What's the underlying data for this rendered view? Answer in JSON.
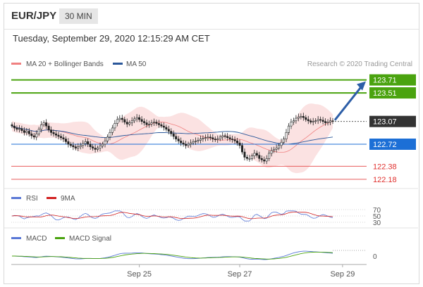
{
  "header": {
    "symbol": "EUR/JPY",
    "timeframe": "30 MIN"
  },
  "datetime": "Tuesday, September 29, 2020 12:15:29 AM CET",
  "credit": "Research © 2020 Trading Central",
  "colors": {
    "bullish": "#4aa30f",
    "bearish": "#e0312f",
    "current": "#333333",
    "pivot": "#1c6fd6",
    "ma50": "#2a579a",
    "bb": "#f2a0a0",
    "arrow": "#2d5ea7",
    "rsi": "#5a78d6",
    "rsi_ma": "#d11f1f",
    "macd": "#5a78d6",
    "macd_signal": "#4aa30f"
  },
  "chart_data": [
    {
      "type": "candlestick",
      "title": "EUR/JPY",
      "legend": [
        "MA 20 + Bollinger Bands",
        "MA 50"
      ],
      "ylim": [
        122.1,
        124.0
      ],
      "levels": [
        {
          "value": 123.71,
          "label": "123.71",
          "kind": "resistance"
        },
        {
          "value": 123.51,
          "label": "123.51",
          "kind": "resistance"
        },
        {
          "value": 123.07,
          "label": "123.07",
          "kind": "current"
        },
        {
          "value": 122.72,
          "label": "122.72",
          "kind": "pivot"
        },
        {
          "value": 122.38,
          "label": "122.38",
          "kind": "support"
        },
        {
          "value": 122.18,
          "label": "122.18",
          "kind": "support"
        }
      ],
      "xticks": [
        {
          "index": 52,
          "label": "Sep 25"
        },
        {
          "index": 93,
          "label": "Sep 27"
        },
        {
          "index": 135,
          "label": "Sep 29"
        }
      ],
      "closes": [
        123.0,
        122.97,
        122.95,
        122.96,
        122.93,
        122.9,
        122.92,
        122.88,
        122.85,
        122.83,
        122.88,
        122.95,
        123.02,
        123.05,
        123.0,
        122.94,
        122.9,
        122.88,
        122.86,
        122.84,
        122.82,
        122.8,
        122.76,
        122.72,
        122.7,
        122.68,
        122.66,
        122.68,
        122.7,
        122.73,
        122.76,
        122.72,
        122.68,
        122.66,
        122.64,
        122.66,
        122.69,
        122.72,
        122.77,
        122.83,
        122.9,
        122.97,
        123.04,
        123.1,
        123.12,
        123.1,
        123.06,
        123.03,
        123.05,
        123.08,
        123.11,
        123.13,
        123.1,
        123.07,
        123.05,
        123.02,
        123.03,
        123.05,
        123.06,
        123.04,
        123.02,
        123.0,
        122.98,
        122.95,
        122.92,
        122.88,
        122.84,
        122.8,
        122.77,
        122.74,
        122.72,
        122.7,
        122.72,
        122.74,
        122.76,
        122.77,
        122.78,
        122.8,
        122.81,
        122.82,
        122.83,
        122.82,
        122.8,
        122.79,
        122.8,
        122.83,
        122.85,
        122.84,
        122.82,
        122.8,
        122.79,
        122.77,
        122.74,
        122.7,
        122.6,
        122.52,
        122.5,
        122.5,
        122.54,
        122.58,
        122.55,
        122.5,
        122.48,
        122.46,
        122.5,
        122.58,
        122.62,
        122.64,
        122.66,
        122.7,
        122.75,
        122.8,
        122.9,
        123.0,
        123.06,
        123.08,
        123.12,
        123.14,
        123.15,
        123.13,
        123.1,
        123.08,
        123.06,
        123.07,
        123.08,
        123.1,
        123.09,
        123.07,
        123.05,
        123.06,
        123.08,
        123.07
      ],
      "rsi_levels": [
        70,
        50,
        30
      ],
      "macd_level": 0
    }
  ],
  "xaxis": {
    "ticks": [
      "Sep 25",
      "Sep 27",
      "Sep 29"
    ]
  },
  "rsi": {
    "legend": [
      "RSI",
      "9MA"
    ],
    "levels": [
      "70",
      "50",
      "30"
    ]
  },
  "macd": {
    "legend": [
      "MACD",
      "MACD Signal"
    ],
    "zero_label": "0"
  }
}
